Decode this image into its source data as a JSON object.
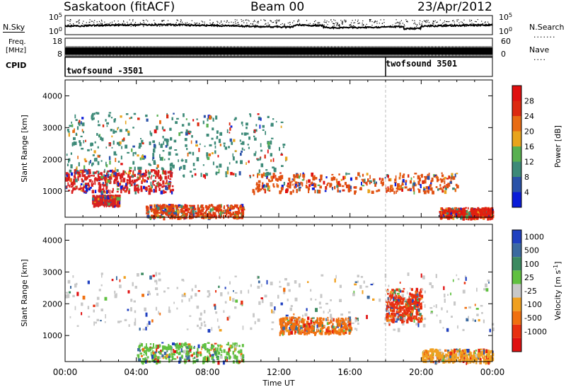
{
  "header": {
    "station": "Saskatoon (fitACF)",
    "beam": "Beam 00",
    "date": "23/Apr/2012"
  },
  "side_labels": {
    "nsky": "N.Sky",
    "nsearch": "N.Search",
    "freq_line1": "Freq.",
    "freq_line2": "[MHz]",
    "nave": "Nave",
    "cpid": "CPID"
  },
  "chart_data": [
    {
      "type": "line",
      "name_left": "N.Sky",
      "name_right": "N.Search",
      "left_ticks": [
        "10^5",
        "10^0"
      ],
      "right_ticks": [
        "10^5",
        "10^0"
      ],
      "y_scale": "log",
      "ylim": [
        1,
        100000
      ]
    },
    {
      "type": "line",
      "name_left": "Freq. [MHz]",
      "name_right": "Nave",
      "left_ticks": [
        "18",
        "8"
      ],
      "left_ylim": [
        8,
        18
      ],
      "right_ticks": [
        "60",
        "0"
      ],
      "right_ylim": [
        0,
        60
      ],
      "freq_mhz_approx": 11.0
    },
    {
      "type": "table",
      "name": "CPID",
      "segments": [
        {
          "start_hour": 0,
          "end_hour": 18,
          "label": "twofsound -3501"
        },
        {
          "start_hour": 18,
          "end_hour": 24,
          "label": "twofsound 3501"
        }
      ]
    },
    {
      "type": "heatmap",
      "title": "Power",
      "ylabel": "Slant Range [km]",
      "xlim": [
        0,
        24
      ],
      "ylim": [
        180,
        4500
      ],
      "y_ticks": [
        "1000",
        "2000",
        "3000",
        "4000"
      ],
      "colorbar": {
        "label": "Power [dB]",
        "ticks": [
          "4",
          "8",
          "12",
          "16",
          "20",
          "24",
          "28"
        ],
        "colors": [
          "#0a1cd8",
          "#2a52a8",
          "#3d8a78",
          "#58b050",
          "#e8a41c",
          "#e86c14",
          "#dc2a10",
          "#e01010"
        ]
      },
      "features": [
        {
          "x_range": [
            0,
            6
          ],
          "y_range": [
            1000,
            1700
          ],
          "dominant": "#d82020"
        },
        {
          "x_range": [
            1.5,
            3
          ],
          "y_range": [
            600,
            900
          ],
          "dominant": "#d82020"
        },
        {
          "x_range": [
            4.5,
            10
          ],
          "y_range": [
            200,
            600
          ],
          "dominant": "#e04010"
        },
        {
          "x_range": [
            10.5,
            22
          ],
          "y_range": [
            1000,
            1600
          ],
          "dominant": "#e05010"
        },
        {
          "x_range": [
            21,
            24
          ],
          "y_range": [
            200,
            500
          ],
          "dominant": "#e02010"
        },
        {
          "x_range": [
            0,
            12.5
          ],
          "y_range": [
            1500,
            3500
          ],
          "dominant": "#3d8a78"
        }
      ]
    },
    {
      "type": "heatmap",
      "title": "Velocity",
      "ylabel": "Slant Range [km]",
      "xlabel": "Time UT",
      "x_ticks": [
        "00:00",
        "04:00",
        "08:00",
        "12:00",
        "16:00",
        "20:00",
        "00:00"
      ],
      "xlim": [
        0,
        24
      ],
      "ylim": [
        180,
        4500
      ],
      "y_ticks": [
        "1000",
        "2000",
        "3000",
        "4000"
      ],
      "colorbar": {
        "label": "Velocity [m s^-1]",
        "ticks": [
          "1000",
          "500",
          "100",
          "25",
          "-25",
          "-100",
          "-500",
          "-1000"
        ],
        "colors": [
          "#2040c0",
          "#3c6aa0",
          "#3c8a60",
          "#60c040",
          "#c8c8c8",
          "#f0a020",
          "#f07010",
          "#e83010",
          "#e01010"
        ]
      },
      "features": [
        {
          "x_range": [
            0,
            24
          ],
          "y_range": [
            1200,
            3000
          ],
          "dominant": "#c8c8c8"
        },
        {
          "x_range": [
            4,
            10
          ],
          "y_range": [
            200,
            800
          ],
          "dominant": "#60c040"
        },
        {
          "x_range": [
            12,
            16
          ],
          "y_range": [
            1100,
            1600
          ],
          "dominant": "#f07010"
        },
        {
          "x_range": [
            18,
            20
          ],
          "y_range": [
            1500,
            2500
          ],
          "dominant": "#e83010"
        },
        {
          "x_range": [
            20,
            24
          ],
          "y_range": [
            200,
            600
          ],
          "dominant": "#f0a020"
        }
      ]
    }
  ]
}
